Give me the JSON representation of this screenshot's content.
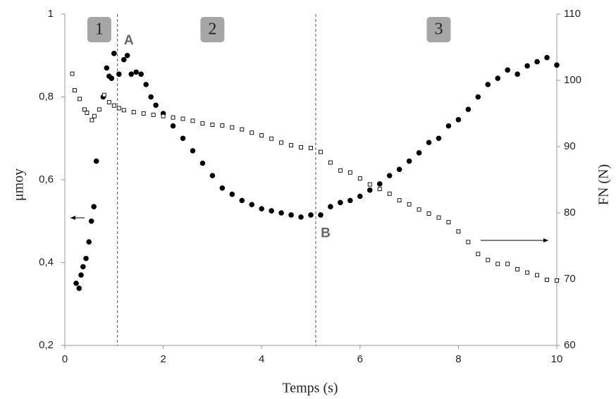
{
  "chart_data": {
    "type": "scatter",
    "x_label": "Temps (s)",
    "y_label": "μmoy",
    "y2_label": "FN (N)",
    "xlim": [
      0,
      10
    ],
    "xticks": [
      0,
      2,
      4,
      6,
      8,
      10
    ],
    "ylim": [
      0.2,
      1
    ],
    "yticks": [
      {
        "value": 0.2,
        "label": "0,2"
      },
      {
        "value": 0.4,
        "label": "0,4"
      },
      {
        "value": 0.6,
        "label": "0,6"
      },
      {
        "value": 0.8,
        "label": "0,8"
      },
      1
    ],
    "y2lim": [
      60,
      110
    ],
    "y2ticks": [
      60,
      70,
      80,
      90,
      100,
      110
    ],
    "vlines": [
      1.07,
      5.1
    ],
    "zones": [
      {
        "label": "1",
        "x": 0.7
      },
      {
        "label": "2",
        "x": 3.0
      },
      {
        "label": "3",
        "x": 7.6
      }
    ],
    "annotations": [
      {
        "text": "A",
        "x": 1.3,
        "y": 0.935
      },
      {
        "text": "B",
        "x": 5.3,
        "y": 0.47
      }
    ],
    "series": [
      {
        "name": "μmoy",
        "color": "#000000",
        "marker": "circle",
        "x": [
          0.23,
          0.29,
          0.33,
          0.37,
          0.43,
          0.49,
          0.54,
          0.59,
          0.64,
          0.78,
          0.85,
          0.9,
          0.95,
          1.0,
          1.1,
          1.2,
          1.27,
          1.35,
          1.45,
          1.55,
          1.65,
          1.75,
          1.85,
          2.0,
          2.2,
          2.4,
          2.6,
          2.8,
          3.0,
          3.2,
          3.4,
          3.6,
          3.8,
          4.0,
          4.2,
          4.4,
          4.6,
          4.8,
          5.0,
          5.2,
          5.4,
          5.6,
          5.8,
          6.0,
          6.2,
          6.4,
          6.6,
          6.8,
          7.0,
          7.2,
          7.4,
          7.6,
          7.8,
          8.0,
          8.2,
          8.4,
          8.6,
          8.8,
          9.0,
          9.2,
          9.4,
          9.6,
          9.8,
          10.0
        ],
        "values": [
          0.35,
          0.338,
          0.37,
          0.39,
          0.41,
          0.45,
          0.5,
          0.535,
          0.645,
          0.8,
          0.87,
          0.85,
          0.845,
          0.905,
          0.855,
          0.89,
          0.9,
          0.855,
          0.86,
          0.855,
          0.83,
          0.8,
          0.78,
          0.76,
          0.73,
          0.7,
          0.67,
          0.64,
          0.61,
          0.58,
          0.565,
          0.55,
          0.54,
          0.53,
          0.525,
          0.52,
          0.515,
          0.51,
          0.515,
          0.515,
          0.535,
          0.545,
          0.55,
          0.56,
          0.575,
          0.59,
          0.61,
          0.625,
          0.645,
          0.665,
          0.69,
          0.7,
          0.73,
          0.745,
          0.77,
          0.8,
          0.83,
          0.845,
          0.865,
          0.855,
          0.875,
          0.885,
          0.895,
          0.877
        ]
      },
      {
        "name": "FN (N)",
        "color": "#000000",
        "marker": "square",
        "axis": "y2",
        "x": [
          0.15,
          0.2,
          0.3,
          0.4,
          0.45,
          0.55,
          0.6,
          0.7,
          0.8,
          0.9,
          1.0,
          1.1,
          1.2,
          1.4,
          1.6,
          1.8,
          2.0,
          2.2,
          2.4,
          2.6,
          2.8,
          3.0,
          3.2,
          3.4,
          3.6,
          3.8,
          4.0,
          4.2,
          4.4,
          4.6,
          4.8,
          5.0,
          5.2,
          5.4,
          5.6,
          5.8,
          6.0,
          6.2,
          6.4,
          6.6,
          6.8,
          7.0,
          7.2,
          7.4,
          7.6,
          7.8,
          8.0,
          8.2,
          8.4,
          8.6,
          8.8,
          9.0,
          9.2,
          9.4,
          9.6,
          9.8,
          10.0
        ],
        "values": [
          101,
          98.5,
          97.2,
          95.6,
          95.1,
          94.0,
          94.6,
          95.6,
          97.8,
          96.7,
          96.2,
          95.8,
          95.5,
          95.2,
          95.0,
          94.8,
          94.6,
          94.4,
          94.2,
          93.9,
          93.5,
          93.3,
          93.2,
          92.9,
          92.6,
          92.1,
          91.7,
          91.2,
          90.6,
          90.2,
          89.9,
          89.8,
          89.2,
          87.6,
          86.4,
          86.1,
          85.2,
          84.3,
          83.6,
          82.9,
          81.9,
          81.3,
          80.5,
          79.9,
          79.3,
          78.6,
          77.2,
          75.6,
          73.8,
          72.9,
          72.3,
          72.3,
          71.5,
          71.0,
          70.6,
          69.9,
          69.8
        ]
      }
    ]
  }
}
